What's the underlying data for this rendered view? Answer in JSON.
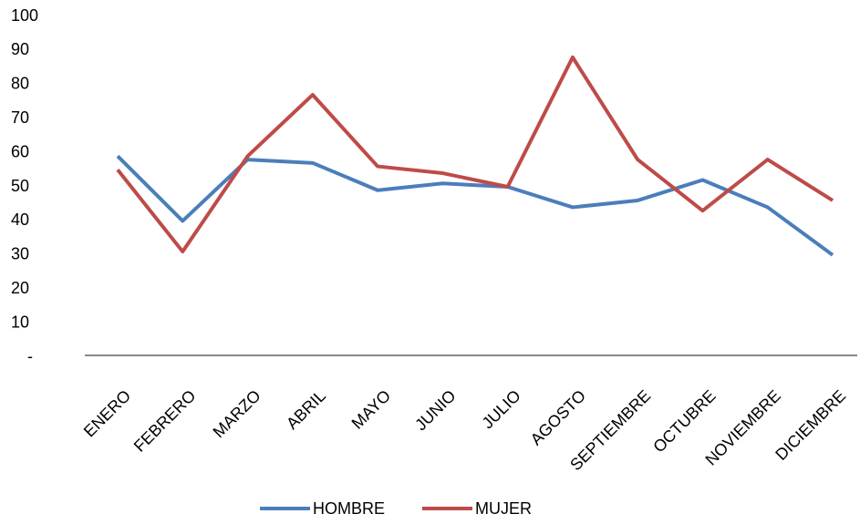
{
  "chart_data": {
    "type": "line",
    "categories": [
      "ENERO",
      "FEBRERO",
      "MARZO",
      "ABRIL",
      "MAYO",
      "JUNIO",
      "JULIO",
      "AGOSTO",
      "SEPTIEMBRE",
      "OCTUBRE",
      "NOVIEMBRE",
      "DICIEMBRE"
    ],
    "series": [
      {
        "name": "HOMBRE",
        "color": "#4a7ebb",
        "values": [
          59,
          40,
          58,
          57,
          49,
          51,
          50,
          44,
          46,
          52,
          44,
          30
        ]
      },
      {
        "name": "MUJER",
        "color": "#be4b48",
        "values": [
          55,
          31,
          59,
          77,
          56,
          54,
          50,
          88,
          58,
          43,
          58,
          46
        ]
      }
    ],
    "ylim": [
      0,
      100
    ],
    "yticks": [
      {
        "value": 0,
        "label": "-"
      },
      10,
      20,
      30,
      40,
      50,
      60,
      70,
      80,
      90,
      100
    ],
    "grid": false,
    "legend": "bottom"
  }
}
